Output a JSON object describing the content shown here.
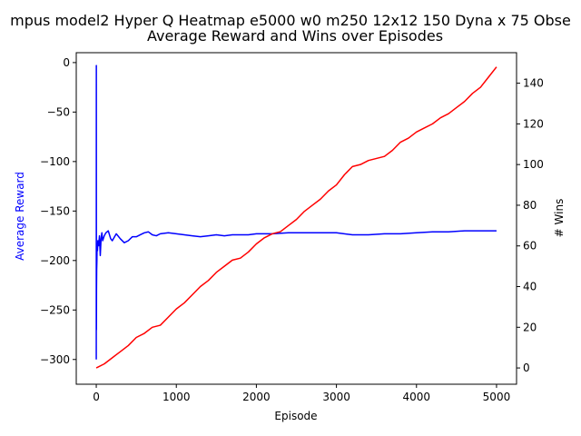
{
  "chart_data": {
    "type": "line",
    "title": "mpus model2 Hyper  Q Heatmap e5000 w0 m250 12x12 150 Dyna x 75 Obse",
    "subtitle": "Average Reward and Wins over Episodes",
    "xlabel": "Episode",
    "ylabel_left": "Average Reward",
    "ylabel_right": "# Wins",
    "xlim": [
      -250,
      5250
    ],
    "ylim_left": [
      -325,
      10
    ],
    "ylim_right": [
      -8,
      155
    ],
    "x_ticks": [
      0,
      1000,
      2000,
      3000,
      4000,
      5000
    ],
    "y_ticks_left": [
      0,
      -50,
      -100,
      -150,
      -200,
      -250,
      -300
    ],
    "y_ticks_right": [
      0,
      20,
      40,
      60,
      80,
      100,
      120,
      140
    ],
    "grid": false,
    "colors": {
      "left_axis_label": "#0000ff",
      "series_reward": "#0000ff",
      "series_wins": "#ff0000"
    },
    "series": [
      {
        "axis": "left",
        "x": [
          0,
          1,
          2,
          3,
          5,
          8,
          10,
          15,
          20,
          30,
          40,
          50,
          60,
          70,
          80,
          100,
          120,
          150,
          180,
          200,
          250,
          300,
          350,
          400,
          450,
          500,
          550,
          600,
          650,
          700,
          750,
          800,
          900,
          1000,
          1100,
          1200,
          1300,
          1400,
          1500,
          1600,
          1700,
          1800,
          1900,
          2000,
          2200,
          2400,
          2600,
          2800,
          3000,
          3200,
          3400,
          3600,
          3800,
          4000,
          4200,
          4400,
          4600,
          4800,
          5000
        ],
        "y": [
          -300,
          -3,
          -270,
          -230,
          -210,
          -200,
          -185,
          -190,
          -180,
          -185,
          -175,
          -195,
          -178,
          -172,
          -180,
          -175,
          -172,
          -170,
          -178,
          -180,
          -173,
          -178,
          -182,
          -180,
          -176,
          -176,
          -174,
          -172,
          -171,
          -174,
          -175,
          -173,
          -172,
          -173,
          -174,
          -175,
          -176,
          -175,
          -174,
          -175,
          -174,
          -174,
          -174,
          -173,
          -173,
          -172,
          -172,
          -172,
          -172,
          -174,
          -174,
          -173,
          -173,
          -172,
          -171,
          -171,
          -170,
          -170,
          -170
        ]
      },
      {
        "axis": "right",
        "x": [
          0,
          100,
          200,
          300,
          400,
          500,
          600,
          700,
          800,
          900,
          1000,
          1100,
          1200,
          1300,
          1400,
          1500,
          1600,
          1700,
          1800,
          1900,
          2000,
          2100,
          2200,
          2300,
          2400,
          2500,
          2600,
          2700,
          2800,
          2900,
          3000,
          3100,
          3200,
          3300,
          3400,
          3500,
          3600,
          3700,
          3800,
          3900,
          4000,
          4100,
          4200,
          4300,
          4400,
          4500,
          4600,
          4700,
          4800,
          4900,
          5000
        ],
        "y": [
          0,
          2,
          5,
          8,
          11,
          15,
          17,
          20,
          21,
          25,
          29,
          32,
          36,
          40,
          43,
          47,
          50,
          53,
          54,
          57,
          61,
          64,
          66,
          67,
          70,
          73,
          77,
          80,
          83,
          87,
          90,
          95,
          99,
          100,
          102,
          103,
          104,
          107,
          111,
          113,
          116,
          118,
          120,
          123,
          125,
          128,
          131,
          135,
          138,
          143,
          148
        ]
      }
    ]
  }
}
